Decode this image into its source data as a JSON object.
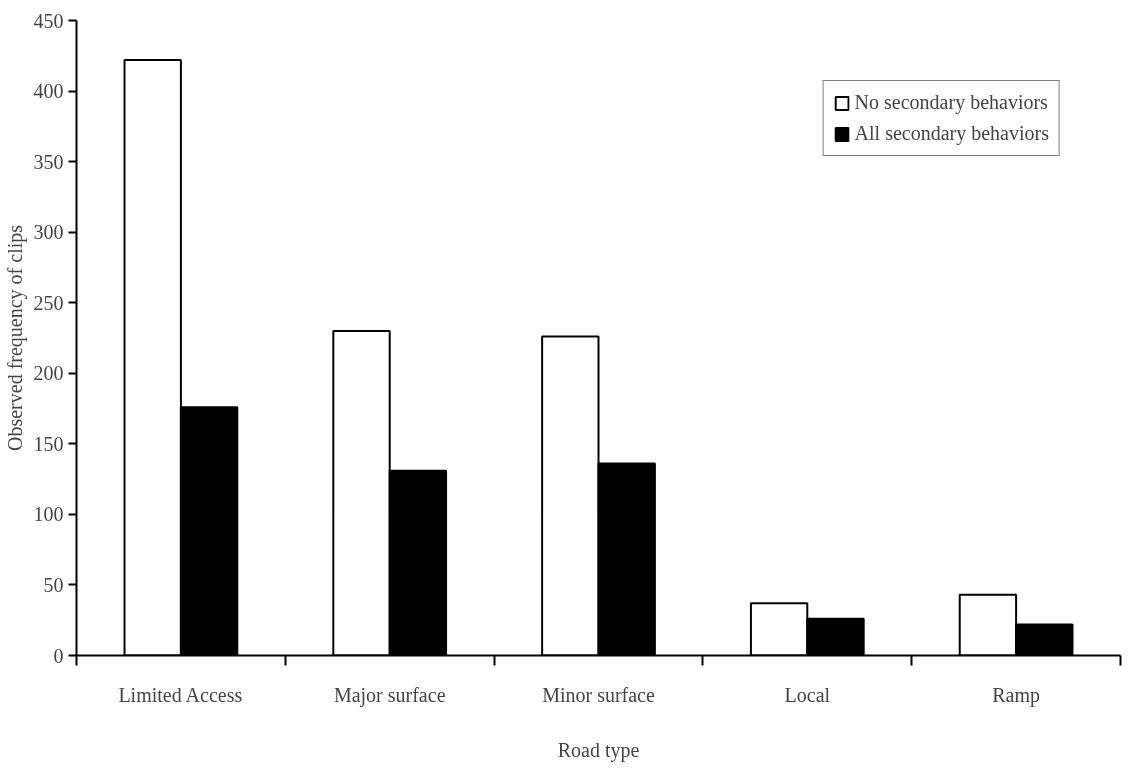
{
  "chart_data": {
    "type": "bar",
    "xlabel": "Road type",
    "ylabel": "Observed frequency of clips",
    "categories": [
      "Limited Access",
      "Major surface",
      "Minor surface",
      "Local",
      "Ramp"
    ],
    "series": [
      {
        "name": "No secondary behaviors",
        "color": "#ffffff",
        "values": [
          422,
          230,
          226,
          37,
          43
        ]
      },
      {
        "name": "All secondary behaviors",
        "color": "#000000",
        "values": [
          176,
          131,
          136,
          26,
          22
        ]
      }
    ],
    "ylim": [
      0,
      450
    ],
    "yticks": [
      0,
      50,
      100,
      150,
      200,
      250,
      300,
      350,
      400,
      450
    ],
    "grid": false,
    "legend": "top right"
  }
}
